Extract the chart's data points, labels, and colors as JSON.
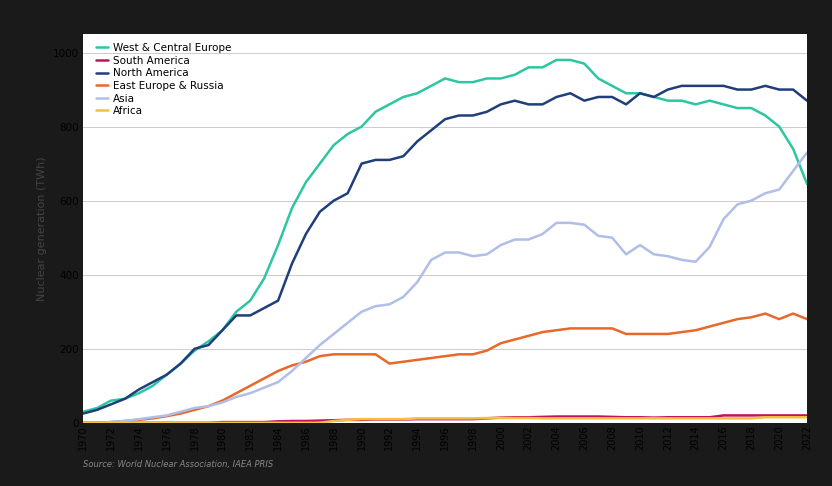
{
  "years": [
    1970,
    1971,
    1972,
    1973,
    1974,
    1975,
    1976,
    1977,
    1978,
    1979,
    1980,
    1981,
    1982,
    1983,
    1984,
    1985,
    1986,
    1987,
    1988,
    1989,
    1990,
    1991,
    1992,
    1993,
    1994,
    1995,
    1996,
    1997,
    1998,
    1999,
    2000,
    2001,
    2002,
    2003,
    2004,
    2005,
    2006,
    2007,
    2008,
    2009,
    2010,
    2011,
    2012,
    2013,
    2014,
    2015,
    2016,
    2017,
    2018,
    2019,
    2020,
    2021,
    2022
  ],
  "west_central_europe": [
    30,
    40,
    60,
    65,
    80,
    100,
    130,
    160,
    195,
    220,
    250,
    300,
    330,
    390,
    480,
    580,
    650,
    700,
    750,
    780,
    800,
    840,
    860,
    880,
    890,
    910,
    930,
    920,
    920,
    930,
    930,
    940,
    960,
    960,
    980,
    980,
    970,
    930,
    910,
    890,
    890,
    880,
    870,
    870,
    860,
    870,
    860,
    850,
    850,
    830,
    800,
    740,
    645
  ],
  "south_america": [
    0,
    0,
    0,
    0,
    0,
    0,
    0,
    0,
    0,
    0,
    2,
    2,
    2,
    2,
    4,
    5,
    5,
    6,
    7,
    8,
    8,
    9,
    9,
    9,
    10,
    10,
    10,
    10,
    10,
    12,
    14,
    15,
    15,
    16,
    17,
    17,
    17,
    17,
    16,
    15,
    15,
    14,
    15,
    15,
    15,
    15,
    20,
    20,
    20,
    20,
    20,
    20,
    20
  ],
  "north_america": [
    25,
    35,
    50,
    65,
    90,
    110,
    130,
    160,
    200,
    210,
    250,
    290,
    290,
    310,
    330,
    430,
    510,
    570,
    600,
    620,
    700,
    710,
    710,
    720,
    760,
    790,
    820,
    830,
    830,
    840,
    860,
    870,
    860,
    860,
    880,
    890,
    870,
    880,
    880,
    860,
    890,
    880,
    900,
    910,
    910,
    910,
    910,
    900,
    900,
    910,
    900,
    900,
    870
  ],
  "east_europe_russia": [
    0,
    0,
    2,
    5,
    8,
    12,
    18,
    25,
    35,
    45,
    60,
    80,
    100,
    120,
    140,
    155,
    165,
    180,
    185,
    185,
    185,
    185,
    160,
    165,
    170,
    175,
    180,
    185,
    185,
    195,
    215,
    225,
    235,
    245,
    250,
    255,
    255,
    255,
    255,
    240,
    240,
    240,
    240,
    245,
    250,
    260,
    270,
    280,
    285,
    295,
    280,
    295,
    280
  ],
  "asia": [
    0,
    0,
    2,
    5,
    10,
    15,
    20,
    30,
    40,
    45,
    55,
    70,
    80,
    95,
    110,
    140,
    175,
    210,
    240,
    270,
    300,
    315,
    320,
    340,
    380,
    440,
    460,
    460,
    450,
    455,
    480,
    495,
    495,
    510,
    540,
    540,
    535,
    505,
    500,
    455,
    480,
    455,
    450,
    440,
    435,
    475,
    550,
    590,
    600,
    620,
    630,
    680,
    730
  ],
  "africa": [
    0,
    0,
    0,
    0,
    0,
    0,
    0,
    0,
    0,
    0,
    0,
    0,
    0,
    0,
    0,
    0,
    0,
    0,
    5,
    8,
    10,
    10,
    10,
    10,
    12,
    12,
    12,
    12,
    12,
    13,
    13,
    13,
    13,
    12,
    12,
    12,
    12,
    12,
    12,
    12,
    12,
    12,
    12,
    12,
    12,
    12,
    12,
    12,
    12,
    15,
    15,
    15,
    15
  ],
  "colors": {
    "west_central_europe": "#2DC5A2",
    "south_america": "#C0145A",
    "north_america": "#1F3E7A",
    "east_europe_russia": "#E8682A",
    "asia": "#B0BEE8",
    "africa": "#F0C040"
  },
  "legend_labels": {
    "west_central_europe": "West & Central Europe",
    "south_america": "South America",
    "north_america": "North America",
    "east_europe_russia": "East Europe & Russia",
    "asia": "Asia",
    "africa": "Africa"
  },
  "ylabel": "Nuclear generation (TWh)",
  "ylim": [
    0,
    1050
  ],
  "yticks": [
    0,
    200,
    400,
    600,
    800,
    1000
  ],
  "source_text": "Source: World Nuclear Association, IAEA PRIS",
  "outer_bg_color": "#1a1a1a",
  "plot_bg_color": "#FFFFFF",
  "grid_color": "#CCCCCC",
  "line_width": 1.8
}
